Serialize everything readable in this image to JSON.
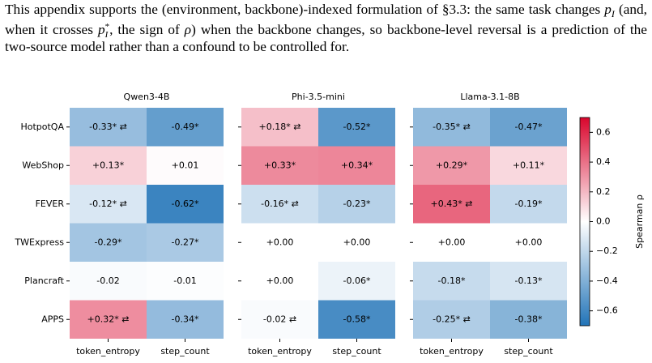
{
  "paragraph": {
    "parts": [
      "This appendix supports the (environment, backbone)-indexed formulation of §3.3: the same task changes ",
      "p",
      "I",
      " (and, when it crosses ",
      "p",
      "*",
      "I",
      ", the sign of ",
      "ρ",
      ") when the backbone changes, so backbone-level reversal is a prediction of the two-source model rather than a confound to be controlled for."
    ]
  },
  "chart_data": [
    {
      "type": "heatmap",
      "title": "Qwen3-4B",
      "x_categories": [
        "token_entropy",
        "step_count"
      ],
      "y_categories": [
        "HotpotQA",
        "WebShop",
        "FEVER",
        "TWExpress",
        "Plancraft",
        "APPS"
      ],
      "values": [
        [
          -0.33,
          -0.49
        ],
        [
          0.13,
          0.01
        ],
        [
          -0.12,
          -0.62
        ],
        [
          -0.29,
          -0.27
        ],
        [
          -0.02,
          -0.01
        ],
        [
          0.32,
          -0.34
        ]
      ],
      "value_labels": [
        [
          "-0.33* ⇄",
          "-0.49*"
        ],
        [
          "+0.13*",
          "+0.01"
        ],
        [
          "-0.12* ⇄",
          "-0.62*"
        ],
        [
          "-0.29*",
          "-0.27*"
        ],
        [
          "-0.02",
          "-0.01"
        ],
        [
          "+0.32* ⇄",
          "-0.34*"
        ]
      ]
    },
    {
      "type": "heatmap",
      "title": "Phi-3.5-mini",
      "x_categories": [
        "token_entropy",
        "step_count"
      ],
      "values": [
        [
          0.18,
          -0.52
        ],
        [
          0.33,
          0.34
        ],
        [
          -0.16,
          -0.23
        ],
        [
          0.0,
          0.0
        ],
        [
          0.0,
          -0.06
        ],
        [
          -0.02,
          -0.58
        ]
      ],
      "value_labels": [
        [
          "+0.18* ⇄",
          "-0.52*"
        ],
        [
          "+0.33*",
          "+0.34*"
        ],
        [
          "-0.16* ⇄",
          "-0.23*"
        ],
        [
          "+0.00",
          "+0.00"
        ],
        [
          "+0.00",
          "-0.06*"
        ],
        [
          "-0.02 ⇄",
          "-0.58*"
        ]
      ]
    },
    {
      "type": "heatmap",
      "title": "Llama-3.1-8B",
      "x_categories": [
        "token_entropy",
        "step_count"
      ],
      "values": [
        [
          -0.35,
          -0.47
        ],
        [
          0.29,
          0.11
        ],
        [
          0.43,
          -0.19
        ],
        [
          0.0,
          0.0
        ],
        [
          -0.18,
          -0.13
        ],
        [
          -0.25,
          -0.38
        ]
      ],
      "value_labels": [
        [
          "-0.35* ⇄",
          "-0.47*"
        ],
        [
          "+0.29*",
          "+0.11*"
        ],
        [
          "+0.43* ⇄",
          "-0.19*"
        ],
        [
          "+0.00",
          "+0.00"
        ],
        [
          "-0.18*",
          "-0.13*"
        ],
        [
          "-0.25* ⇄",
          "-0.38*"
        ]
      ],
      "colorbar": {
        "label": "Spearman ρ",
        "clim": [
          -0.7,
          0.7
        ],
        "cmap": [
          "#2274b8",
          "#ffffff",
          "#d9062d"
        ],
        "ticks": [
          0.6,
          0.4,
          0.2,
          {
            "value": 0,
            "label": "0.0"
          },
          {
            "value": -0.2,
            "label": "−0.2"
          },
          {
            "value": -0.4,
            "label": "−0.4"
          },
          {
            "value": -0.6,
            "label": "−0.6"
          }
        ]
      }
    }
  ]
}
